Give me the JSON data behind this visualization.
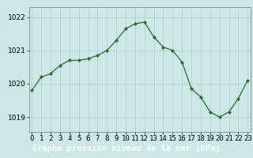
{
  "x": [
    0,
    1,
    2,
    3,
    4,
    5,
    6,
    7,
    8,
    9,
    10,
    11,
    12,
    13,
    14,
    15,
    16,
    17,
    18,
    19,
    20,
    21,
    22,
    23
  ],
  "y": [
    1019.8,
    1020.2,
    1020.3,
    1020.55,
    1020.7,
    1020.7,
    1020.75,
    1020.85,
    1021.0,
    1021.3,
    1021.65,
    1021.8,
    1021.85,
    1021.4,
    1021.1,
    1021.0,
    1020.65,
    1019.85,
    1019.6,
    1019.15,
    1019.0,
    1019.15,
    1019.55,
    1020.1
  ],
  "line_color": "#2d6a2d",
  "marker": "D",
  "marker_size": 2.2,
  "bg_color": "#cce8e8",
  "grid_color": "#b0cccc",
  "ylabel_ticks": [
    1019,
    1020,
    1021,
    1022
  ],
  "xlabel_ticks": [
    0,
    1,
    2,
    3,
    4,
    5,
    6,
    7,
    8,
    9,
    10,
    11,
    12,
    13,
    14,
    15,
    16,
    17,
    18,
    19,
    20,
    21,
    22,
    23
  ],
  "xlim": [
    -0.3,
    23.3
  ],
  "ylim": [
    1018.55,
    1022.3
  ],
  "xlabel": "Graphe pression niveau de la mer (hPa)",
  "xlabel_fontsize": 7.5,
  "tick_fontsize": 6.5,
  "label_bg_color": "#2d6a2d",
  "label_text_color": "#ffffff"
}
